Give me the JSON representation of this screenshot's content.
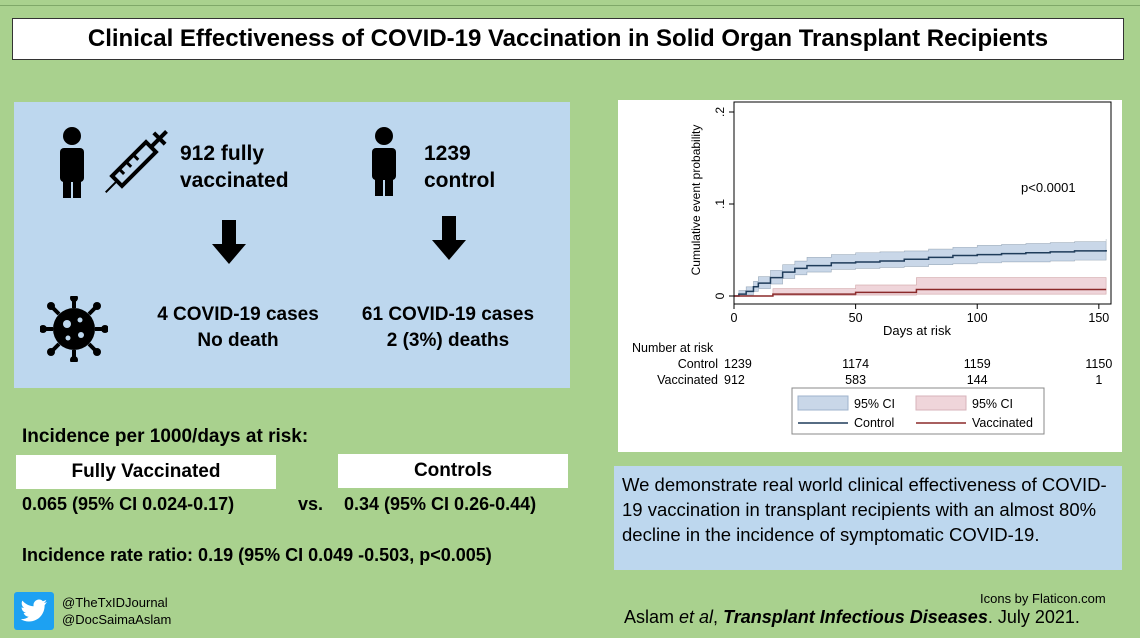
{
  "title": "Clinical Effectiveness of COVID-19 Vaccination in Solid Organ Transplant Recipients",
  "colors": {
    "background": "#a9d18e",
    "panel": "#bdd7ee",
    "control_line": "#1f3c5a",
    "vaccinated_line": "#8b2a2a",
    "control_ci": "#c9d7e8",
    "vaccinated_ci": "#efd5da"
  },
  "cohorts": {
    "vaccinated": {
      "icon": "person-with-syringe-icon",
      "label_line1": "912 fully",
      "label_line2": "vaccinated"
    },
    "control": {
      "icon": "person-icon",
      "label_line1": "1239",
      "label_line2": "control"
    }
  },
  "outcomes": {
    "virus_icon": "virus-icon",
    "vaccinated_line1": "4 COVID-19 cases",
    "vaccinated_line2": "No death",
    "control_line1": "61 COVID-19 cases",
    "control_line2": "2 (3%) deaths"
  },
  "incidence": {
    "title": "Incidence per 1000/days at risk:",
    "vaccinated_header": "Fully Vaccinated",
    "control_header": "Controls",
    "vaccinated_value": "0.065 (95% CI 0.024-0.17)",
    "vs": "vs.",
    "control_value": "0.34 (95% CI 0.26-0.44)",
    "ratio": "Incidence rate ratio: 0.19 (95% CI 0.049 -0.503, p<0.005)"
  },
  "chart_data": {
    "type": "line",
    "title": "",
    "xlabel": "Days at risk",
    "ylabel": "Cumulative event probability",
    "xlim": [
      0,
      155
    ],
    "ylim": [
      0,
      0.2
    ],
    "xticks": [
      0,
      50,
      100,
      150
    ],
    "yticks": [
      0,
      0.1,
      0.2
    ],
    "ytick_labels": [
      "0",
      ".1",
      ".2"
    ],
    "annotation": "p<0.0001",
    "series": [
      {
        "name": "Control",
        "x": [
          0,
          2,
          5,
          8,
          10,
          15,
          20,
          25,
          30,
          40,
          50,
          60,
          70,
          80,
          90,
          100,
          110,
          120,
          130,
          140,
          153
        ],
        "y": [
          0,
          0.002,
          0.005,
          0.01,
          0.014,
          0.02,
          0.026,
          0.03,
          0.033,
          0.036,
          0.037,
          0.038,
          0.04,
          0.042,
          0.044,
          0.045,
          0.046,
          0.047,
          0.048,
          0.049,
          0.05
        ],
        "ci_low": [
          0,
          0,
          0.001,
          0.005,
          0.008,
          0.013,
          0.019,
          0.023,
          0.026,
          0.029,
          0.03,
          0.031,
          0.032,
          0.034,
          0.035,
          0.036,
          0.037,
          0.037,
          0.038,
          0.039,
          0.039
        ],
        "ci_high": [
          0,
          0.006,
          0.01,
          0.016,
          0.021,
          0.028,
          0.034,
          0.038,
          0.042,
          0.045,
          0.047,
          0.048,
          0.049,
          0.051,
          0.053,
          0.055,
          0.056,
          0.057,
          0.058,
          0.059,
          0.062
        ]
      },
      {
        "name": "Vaccinated",
        "x": [
          0,
          15,
          16,
          40,
          50,
          70,
          75,
          90,
          110,
          153
        ],
        "y": [
          0,
          0,
          0.002,
          0.002,
          0.004,
          0.004,
          0.007,
          0.007,
          0.007,
          0.007
        ],
        "ci_low": [
          0,
          0,
          0.0005,
          0.0005,
          0.001,
          0.001,
          0.002,
          0.002,
          0.002,
          0.002
        ],
        "ci_high": [
          0,
          0,
          0.008,
          0.008,
          0.012,
          0.012,
          0.02,
          0.02,
          0.02,
          0.02
        ]
      }
    ],
    "risk_table": {
      "title": "Number at risk",
      "rows": [
        {
          "label": "Control",
          "values": [
            "1239",
            "1174",
            "1159",
            "1150"
          ]
        },
        {
          "label": "Vaccinated",
          "values": [
            "912",
            "583",
            "144",
            "1"
          ]
        }
      ]
    },
    "legend": {
      "ci_label_control": "95% CI",
      "ci_label_vaccinated": "95% CI",
      "line_label_control": "Control",
      "line_label_vaccinated": "Vaccinated",
      "placement": "bottom"
    }
  },
  "summary": "We demonstrate real world clinical effectiveness of COVID-19 vaccination in transplant recipients with an almost 80% decline in the incidence of symptomatic COVID-19.",
  "footer": {
    "twitter_icon": "twitter-icon",
    "handle1": "@TheTxIDJournal",
    "handle2": "@DocSaimaAslam",
    "icons_credit": "Icons by Flaticon.com",
    "citation_author": "Aslam ",
    "citation_etal": "et al",
    "citation_sep": ", ",
    "citation_journal": "Transplant Infectious Diseases",
    "citation_date": ".  July 2021."
  }
}
